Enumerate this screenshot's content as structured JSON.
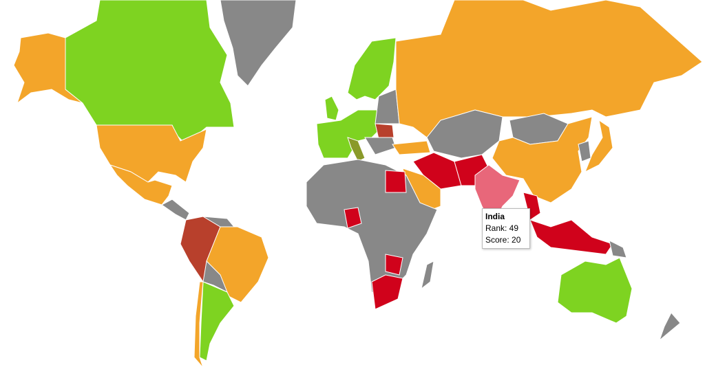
{
  "tooltip": {
    "title": "India",
    "lines": [
      "Rank: 49",
      "Score: 20"
    ]
  }
}
